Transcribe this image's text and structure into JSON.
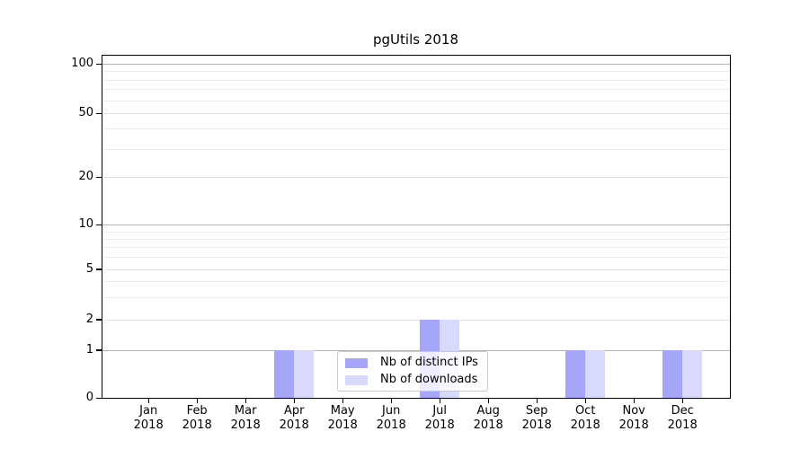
{
  "chart_data": {
    "type": "bar",
    "title": "pgUtils 2018",
    "x_axis": {
      "months": [
        "Jan",
        "Feb",
        "Mar",
        "Apr",
        "May",
        "Jun",
        "Jul",
        "Aug",
        "Sep",
        "Oct",
        "Nov",
        "Dec"
      ],
      "year": "2018"
    },
    "y_axis": {
      "scale": "symlog",
      "tick_labels": [
        "100",
        "50",
        "20",
        "10",
        "5",
        "2",
        "1",
        "0"
      ],
      "ylim": [
        0,
        110
      ],
      "grid": true
    },
    "series": [
      {
        "name": "Nb of distinct IPs",
        "color": "#a6a6f8",
        "values": [
          0,
          0,
          0,
          1,
          0,
          0,
          2,
          0,
          0,
          1,
          0,
          1
        ]
      },
      {
        "name": "Nb of downloads",
        "color": "#d9d9fb",
        "values": [
          0,
          0,
          0,
          1,
          0,
          0,
          2,
          0,
          0,
          1,
          0,
          1
        ]
      }
    ],
    "legend": {
      "position": "lower center",
      "items": [
        "Nb of distinct IPs",
        "Nb of downloads"
      ]
    }
  }
}
